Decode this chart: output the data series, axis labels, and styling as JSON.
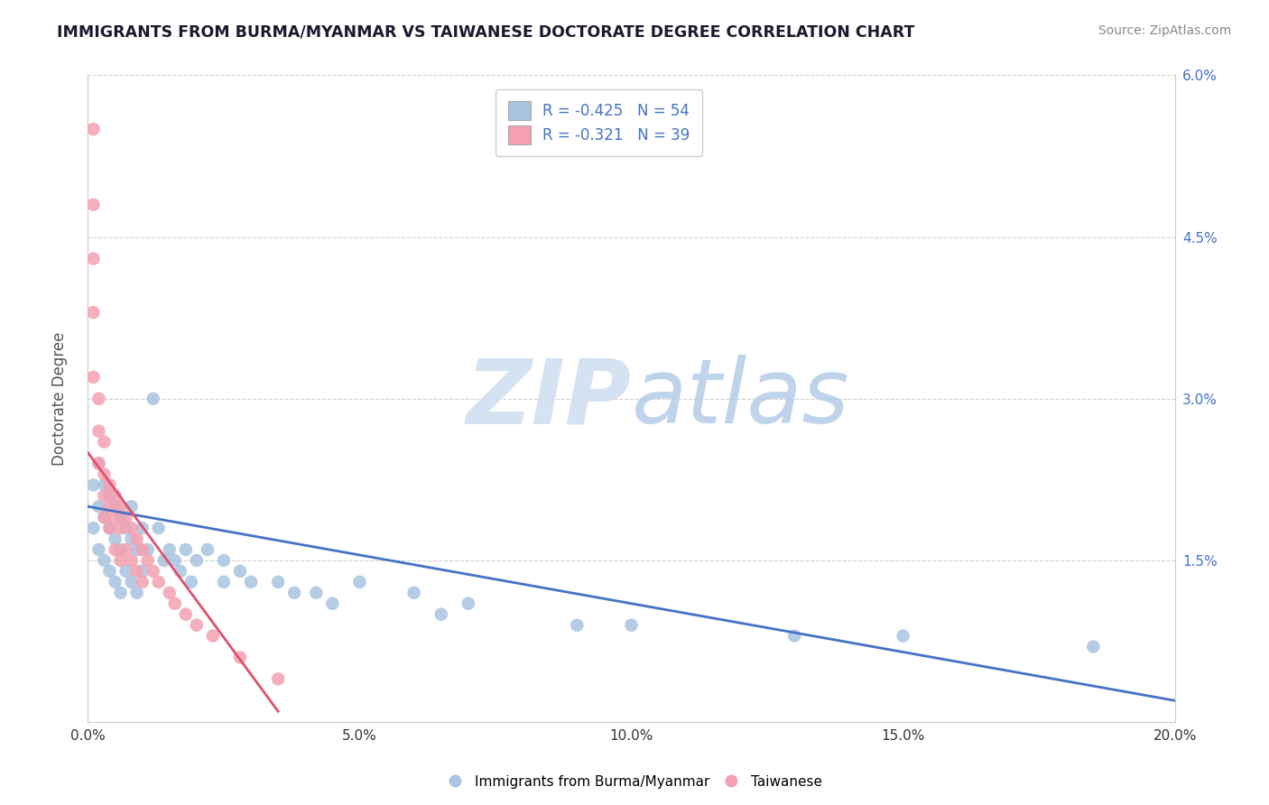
{
  "title": "IMMIGRANTS FROM BURMA/MYANMAR VS TAIWANESE DOCTORATE DEGREE CORRELATION CHART",
  "source": "Source: ZipAtlas.com",
  "xlabel": "",
  "ylabel": "Doctorate Degree",
  "xlim": [
    0.0,
    0.2
  ],
  "ylim": [
    0.0,
    0.06
  ],
  "xticks": [
    0.0,
    0.05,
    0.1,
    0.15,
    0.2
  ],
  "xtick_labels": [
    "0.0%",
    "5.0%",
    "10.0%",
    "15.0%",
    "20.0%"
  ],
  "yticks": [
    0.0,
    0.015,
    0.03,
    0.045,
    0.06
  ],
  "ytick_labels": [
    "",
    "1.5%",
    "3.0%",
    "4.5%",
    "6.0%"
  ],
  "legend1_label": "R = -0.425   N = 54",
  "legend2_label": "R = -0.321   N = 39",
  "blue_color": "#a8c4e0",
  "pink_color": "#f4a0b0",
  "blue_line_color": "#4472c4",
  "pink_line_color": "#e05070",
  "blue_x": [
    0.001,
    0.001,
    0.002,
    0.002,
    0.002,
    0.003,
    0.003,
    0.003,
    0.004,
    0.004,
    0.004,
    0.005,
    0.005,
    0.005,
    0.006,
    0.006,
    0.006,
    0.007,
    0.007,
    0.008,
    0.008,
    0.008,
    0.009,
    0.009,
    0.01,
    0.01,
    0.011,
    0.012,
    0.013,
    0.014,
    0.015,
    0.016,
    0.017,
    0.018,
    0.019,
    0.02,
    0.022,
    0.025,
    0.025,
    0.028,
    0.03,
    0.035,
    0.038,
    0.042,
    0.045,
    0.05,
    0.06,
    0.065,
    0.07,
    0.09,
    0.1,
    0.13,
    0.15,
    0.185
  ],
  "blue_y": [
    0.022,
    0.018,
    0.024,
    0.02,
    0.016,
    0.022,
    0.019,
    0.015,
    0.021,
    0.018,
    0.014,
    0.02,
    0.017,
    0.013,
    0.019,
    0.016,
    0.012,
    0.018,
    0.014,
    0.02,
    0.017,
    0.013,
    0.016,
    0.012,
    0.018,
    0.014,
    0.016,
    0.03,
    0.018,
    0.015,
    0.016,
    0.015,
    0.014,
    0.016,
    0.013,
    0.015,
    0.016,
    0.015,
    0.013,
    0.014,
    0.013,
    0.013,
    0.012,
    0.012,
    0.011,
    0.013,
    0.012,
    0.01,
    0.011,
    0.009,
    0.009,
    0.008,
    0.008,
    0.007
  ],
  "pink_x": [
    0.001,
    0.001,
    0.001,
    0.001,
    0.001,
    0.002,
    0.002,
    0.002,
    0.003,
    0.003,
    0.003,
    0.003,
    0.004,
    0.004,
    0.004,
    0.005,
    0.005,
    0.005,
    0.006,
    0.006,
    0.006,
    0.007,
    0.007,
    0.008,
    0.008,
    0.009,
    0.009,
    0.01,
    0.01,
    0.011,
    0.012,
    0.013,
    0.015,
    0.016,
    0.018,
    0.02,
    0.023,
    0.028,
    0.035
  ],
  "pink_y": [
    0.055,
    0.048,
    0.043,
    0.038,
    0.032,
    0.03,
    0.027,
    0.024,
    0.026,
    0.023,
    0.021,
    0.019,
    0.022,
    0.02,
    0.018,
    0.021,
    0.019,
    0.016,
    0.02,
    0.018,
    0.015,
    0.019,
    0.016,
    0.018,
    0.015,
    0.017,
    0.014,
    0.016,
    0.013,
    0.015,
    0.014,
    0.013,
    0.012,
    0.011,
    0.01,
    0.009,
    0.008,
    0.006,
    0.004
  ],
  "blue_line_x0": 0.0,
  "blue_line_y0": 0.02,
  "blue_line_x1": 0.2,
  "blue_line_y1": 0.002,
  "pink_line_x0": 0.0,
  "pink_line_y0": 0.025,
  "pink_line_x1": 0.035,
  "pink_line_y1": 0.001
}
